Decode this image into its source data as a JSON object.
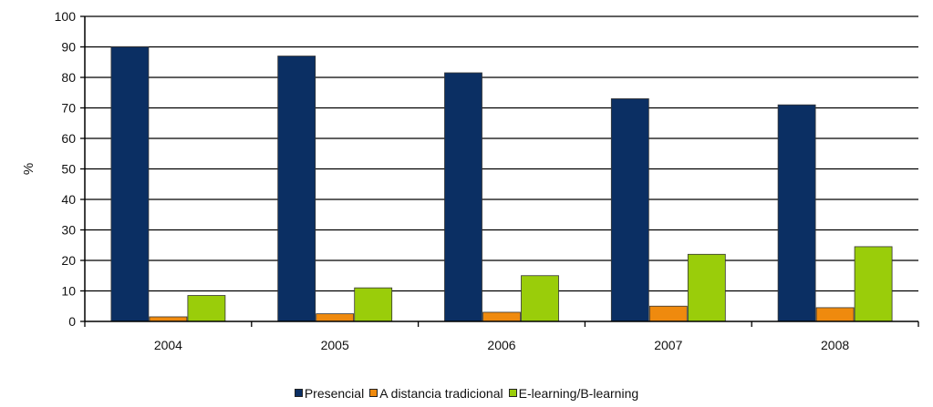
{
  "chart_data": {
    "type": "bar",
    "title": "",
    "xlabel": "",
    "ylabel": "%",
    "ylim": [
      0,
      100
    ],
    "yticks": [
      0,
      10,
      20,
      30,
      40,
      50,
      60,
      70,
      80,
      90,
      100
    ],
    "grid": true,
    "legend_position": "bottom",
    "categories": [
      "2004",
      "2005",
      "2006",
      "2007",
      "2008"
    ],
    "series": [
      {
        "name": "Presencial",
        "color": "#0b2f63",
        "values": [
          90,
          87,
          81.5,
          73,
          71
        ]
      },
      {
        "name": "A distancia tradicional",
        "color": "#ef8a0e",
        "values": [
          1.5,
          2.5,
          3,
          5,
          4.5
        ]
      },
      {
        "name": "E-learning/B-learning",
        "color": "#9acd0a",
        "values": [
          8.5,
          11,
          15,
          22,
          24.5
        ]
      }
    ]
  }
}
